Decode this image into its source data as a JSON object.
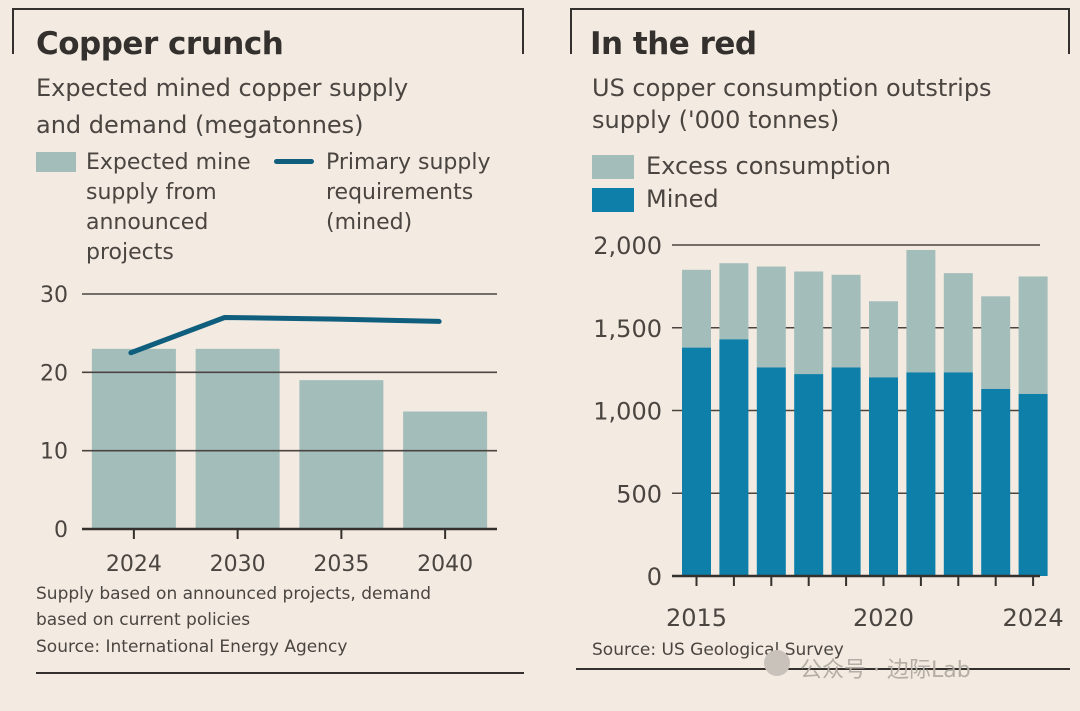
{
  "left": {
    "title": "Copper crunch",
    "subtitle_lines": [
      "Expected mined copper supply",
      "and demand (megatonnes)"
    ],
    "legend": {
      "bar_lines": [
        "Expected mine",
        "supply from",
        "announced",
        "projects"
      ],
      "line_lines": [
        "Primary supply",
        "requirements",
        "(mined)"
      ]
    },
    "footnote_lines": [
      "Supply based on announced projects, demand",
      "based on current policies",
      "Source: International Energy Agency"
    ],
    "colors": {
      "bar": "#a3bdbb",
      "line": "#0f5e7d"
    }
  },
  "right": {
    "title": "In the red",
    "subtitle_lines": [
      "US copper consumption outstrips",
      "supply ('000 tonnes)"
    ],
    "legend": {
      "excess": "Excess consumption",
      "mined": "Mined"
    },
    "source": "Source: US Geological Survey",
    "colors": {
      "excess": "#a3bdbb",
      "mined": "#0d7fa8"
    }
  },
  "watermark": "公众号 · 边际Lab",
  "chart_data": [
    {
      "type": "bar",
      "title": "Copper crunch",
      "ylabel": "megatonnes",
      "categories": [
        "2024",
        "2030",
        "2035",
        "2040"
      ],
      "series": [
        {
          "name": "Expected mine supply from announced projects",
          "type": "bar",
          "values": [
            23,
            23,
            19,
            15
          ]
        },
        {
          "name": "Primary supply requirements (mined)",
          "type": "line",
          "values": [
            22.5,
            27,
            26.8,
            26.5
          ]
        }
      ],
      "ylim": [
        0,
        30
      ],
      "yticks": [
        0,
        10,
        20,
        30
      ],
      "grid": true
    },
    {
      "type": "bar",
      "stacked": true,
      "title": "In the red",
      "ylabel": "'000 tonnes",
      "categories": [
        "2015",
        "2016",
        "2017",
        "2018",
        "2019",
        "2020",
        "2021",
        "2022",
        "2023",
        "2024"
      ],
      "series": [
        {
          "name": "Mined",
          "values": [
            1380,
            1430,
            1260,
            1220,
            1260,
            1200,
            1230,
            1230,
            1130,
            1100
          ]
        },
        {
          "name": "Excess consumption",
          "values": [
            470,
            460,
            610,
            620,
            560,
            460,
            740,
            600,
            560,
            710
          ]
        }
      ],
      "ylim": [
        0,
        2000
      ],
      "yticks": [
        0,
        500,
        1000,
        1500,
        2000
      ],
      "ytick_labels": [
        "0",
        "500",
        "1,000",
        "1,500",
        "2,000"
      ],
      "xtick_labels": [
        "2015",
        "2020",
        "2024"
      ],
      "grid": true
    }
  ]
}
